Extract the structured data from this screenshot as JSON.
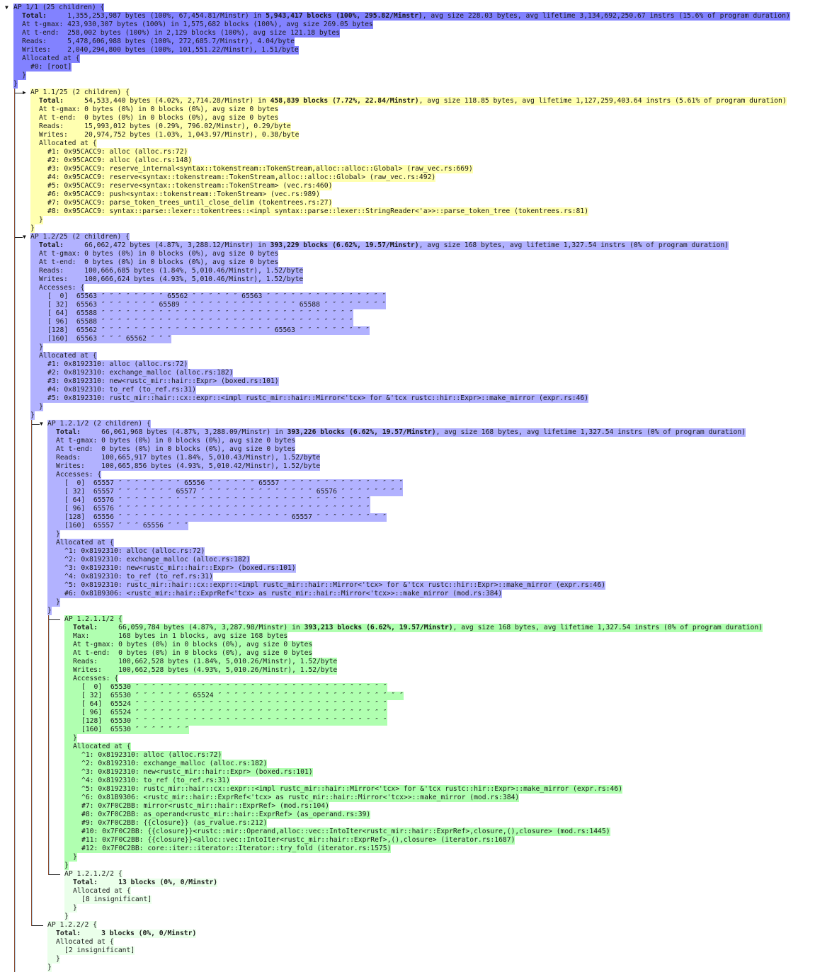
{
  "colors": {
    "root": "#8282ff",
    "ap_1_2": "#b2b2ff",
    "yellow": "#ffffb0",
    "green": "#b0ffb0",
    "light_green": "#eaffea"
  },
  "labels": {
    "total": "Total:",
    "max": "Max:",
    "gmax": "At t-gmax:",
    "tend": "At t-end:",
    "reads": "Reads:",
    "writes": "Writes:",
    "accesses": "Accesses: {",
    "allocated": "Allocated at {",
    "close": "}"
  },
  "nodes": {
    "root": {
      "header": "AP 1/1 (25 children) {",
      "toggle": "expanded",
      "color_key": "root",
      "total_pre": "1,355,253,987 bytes (100%, 67,454.81/Minstr) in ",
      "total_bold": "5,943,417 blocks (100%, 295.82/Minstr)",
      "total_post": ", avg size 228.03 bytes, avg lifetime 3,134,692,250.67 instrs (15.6% of program duration)",
      "gmax": "423,930,307 bytes (100%) in 1,575,682 blocks (100%), avg size 269.05 bytes",
      "tend": "258,002 bytes (100%) in 2,129 blocks (100%), avg size 121.18 bytes",
      "reads": "5,478,606,988 bytes (100%, 272,685.7/Minstr), 4.04/byte",
      "writes": "2,040,294,800 bytes (100%, 101,551.22/Minstr), 1.51/byte",
      "frames": [
        "#0: [root]"
      ]
    },
    "ap_1_1": {
      "header": "AP 1.1/25 (2 children) {",
      "toggle": "collapsed",
      "color_key": "yellow",
      "total_pre": "54,533,440 bytes (4.02%, 2,714.28/Minstr) in ",
      "total_bold": "458,839 blocks (7.72%, 22.84/Minstr)",
      "total_post": ", avg size 118.85 bytes, avg lifetime 1,127,259,403.64 instrs (5.61% of program duration)",
      "gmax": "0 bytes (0%) in 0 blocks (0%), avg size 0 bytes",
      "tend": "0 bytes (0%) in 0 blocks (0%), avg size 0 bytes",
      "reads": "15,993,012 bytes (0.29%, 796.02/Minstr), 0.29/byte",
      "writes": "20,974,752 bytes (1.03%, 1,043.97/Minstr), 0.38/byte",
      "frames": [
        "#1: 0x95CACC9: alloc (alloc.rs:72)",
        "#2: 0x95CACC9: alloc (alloc.rs:148)",
        "#3: 0x95CACC9: reserve_internal<syntax::tokenstream::TokenStream,alloc::alloc::Global> (raw_vec.rs:669)",
        "#4: 0x95CACC9: reserve<syntax::tokenstream::TokenStream,alloc::alloc::Global> (raw_vec.rs:492)",
        "#5: 0x95CACC9: reserve<syntax::tokenstream::TokenStream> (vec.rs:460)",
        "#6: 0x95CACC9: push<syntax::tokenstream::TokenStream> (vec.rs:989)",
        "#7: 0x95CACC9: parse_token_trees_until_close_delim (tokentrees.rs:27)",
        "#8: 0x95CACC9: syntax::parse::lexer::tokentrees::<impl syntax::parse::lexer::StringReader<'a>>::parse_token_tree (tokentrees.rs:81)"
      ]
    },
    "ap_1_2": {
      "header": "AP 1.2/25 (2 children) {",
      "toggle": "expanded",
      "color_key": "ap_1_2",
      "total_pre": "66,062,472 bytes (4.87%, 3,288.12/Minstr) in ",
      "total_bold": "393,229 blocks (6.62%, 19.57/Minstr)",
      "total_post": ", avg size 168 bytes, avg lifetime 1,327.54 instrs (0% of program duration)",
      "gmax": "0 bytes (0%) in 0 blocks (0%), avg size 0 bytes",
      "tend": "0 bytes (0%) in 0 blocks (0%), avg size 0 bytes",
      "reads": "100,666,685 bytes (1.84%, 5,010.46/Minstr), 1.52/byte",
      "writes": "100,666,624 bytes (4.93%, 5,010.46/Minstr), 1.52/byte",
      "accesses": [
        {
          "offset": "[  0]",
          "values": "65563 ″ ″ ″ ″ ″ ″ ″ ″ 65562 ″ ″ ″ ″ ″ ″ 65563 ″ ″ ″ ″ ″ ″ ″ ″ ″ ″ ″ ″ ″ ″ ″"
        },
        {
          "offset": "[ 32]",
          "values": "65563 ″ ″ ″ ″ ″ ″ ″ 65589 ″ ″ ″ ″ ″ ″ ″ ″ ″ ″ ″ ″ ″ ″ 65588 ″ ″ ″ ″ ″ ″ ″ ″"
        },
        {
          "offset": "[ 64]",
          "values": "65588 ″ ″ ″ ″ ″ ″ ″ ″ ″ ″ ″ ″ ″ ″ ″ ″ ″ ″ ″ ″ ″ ″ ″ ″ ″ ″ ″ ″ ″ ″ ″"
        },
        {
          "offset": "[ 96]",
          "values": "65588 ″ ″ ″ ″ ″ ″ ″ ″ ″ ″ ″ ″ ″ ″ ″ ″ ″ ″ ″ ″ ″ ″ ″ ″ ″ ″ ″ ″ ″ ″ ″"
        },
        {
          "offset": "[128]",
          "values": "65562 ″ ″ ″ ″ ″ ″ ″ ″ ″ ″ ″ ″ ″ ″ ″ ″ ″ ″ ″ ″ ″ 65563 ″ ″ ″ ″ ″ ″ ″ ″ ″"
        },
        {
          "offset": "[160]",
          "values": "65563 ″ ″ ″ 65562 ″ ″ ″"
        }
      ],
      "frames": [
        "#1: 0x8192310: alloc (alloc.rs:72)",
        "#2: 0x8192310: exchange_malloc (alloc.rs:182)",
        "#3: 0x8192310: new<rustc_mir::hair::Expr> (boxed.rs:101)",
        "#4: 0x8192310: to_ref (to_ref.rs:31)",
        "#5: 0x8192310: rustc_mir::hair::cx::expr::<impl rustc_mir::hair::Mirror<'tcx> for &'tcx rustc::hir::Expr>::make_mirror (expr.rs:46)"
      ]
    },
    "ap_1_2_1": {
      "header": "AP 1.2.1/2 (2 children) {",
      "toggle": "expanded",
      "color_key": "ap_1_2",
      "total_pre": "66,061,968 bytes (4.87%, 3,288.09/Minstr) in ",
      "total_bold": "393,226 blocks (6.62%, 19.57/Minstr)",
      "total_post": ", avg size 168 bytes, avg lifetime 1,327.54 instrs (0% of program duration)",
      "gmax": "0 bytes (0%) in 0 blocks (0%), avg size 0 bytes",
      "tend": "0 bytes (0%) in 0 blocks (0%), avg size 0 bytes",
      "reads": "100,665,917 bytes (1.84%, 5,010.43/Minstr), 1.52/byte",
      "writes": "100,665,856 bytes (4.93%, 5,010.42/Minstr), 1.52/byte",
      "accesses": [
        {
          "offset": "[  0]",
          "values": "65557 ″ ″ ″ ″ ″ ″ ″ ″ 65556 ″ ″ ″ ″ ″ ″ 65557 ″ ″ ″ ″ ″ ″ ″ ″ ″ ″ ″ ″ ″ ″ ″"
        },
        {
          "offset": "[ 32]",
          "values": "65557 ″ ″ ″ ″ ″ ″ ″ 65577 ″ ″ ″ ″ ″ ″ ″ ″ ″ ″ ″ ″ ″ ″ 65576 ″ ″ ″ ″ ″ ″ ″ ″"
        },
        {
          "offset": "[ 64]",
          "values": "65576 ″ ″ ″ ″ ″ ″ ″ ″ ″ ″ ″ ″ ″ ″ ″ ″ ″ ″ ″ ″ ″ ″ ″ ″ ″ ″ ″ ″ ″ ″ ″"
        },
        {
          "offset": "[ 96]",
          "values": "65576 ″ ″ ″ ″ ″ ″ ″ ″ ″ ″ ″ ″ ″ ″ ″ ″ ″ ″ ″ ″ ″ ″ ″ ″ ″ ″ ″ ″ ″ ″ ″"
        },
        {
          "offset": "[128]",
          "values": "65556 ″ ″ ″ ″ ″ ″ ″ ″ ″ ″ ″ ″ ″ ″ ″ ″ ″ ″ ″ ″ ″ 65557 ″ ″ ″ ″ ″ ″ ″ ″ ″"
        },
        {
          "offset": "[160]",
          "values": "65557 ″ ″ ″ 65556 ″ ″ ″"
        }
      ],
      "frames": [
        "^1: 0x8192310: alloc (alloc.rs:72)",
        "^2: 0x8192310: exchange_malloc (alloc.rs:182)",
        "^3: 0x8192310: new<rustc_mir::hair::Expr> (boxed.rs:101)",
        "^4: 0x8192310: to_ref (to_ref.rs:31)",
        "^5: 0x8192310: rustc_mir::hair::cx::expr::<impl rustc_mir::hair::Mirror<'tcx> for &'tcx rustc::hir::Expr>::make_mirror (expr.rs:46)",
        "#6: 0x81B9306: <rustc_mir::hair::ExprRef<'tcx> as rustc_mir::hair::Mirror<'tcx>>::make_mirror (mod.rs:384)"
      ]
    },
    "ap_1_2_1_1": {
      "header": "AP 1.2.1.1/2 {",
      "toggle": "leaf",
      "color_key": "green",
      "total_pre": "66,059,784 bytes (4.87%, 3,287.98/Minstr) in ",
      "total_bold": "393,213 blocks (6.62%, 19.57/Minstr)",
      "total_post": ", avg size 168 bytes, avg lifetime 1,327.54 instrs (0% of program duration)",
      "max": "168 bytes in 1 blocks, avg size 168 bytes",
      "gmax": "0 bytes (0%) in 0 blocks (0%), avg size 0 bytes",
      "tend": "0 bytes (0%) in 0 blocks (0%), avg size 0 bytes",
      "reads": "100,662,528 bytes (1.84%, 5,010.26/Minstr), 1.52/byte",
      "writes": "100,662,528 bytes (4.93%, 5,010.26/Minstr), 1.52/byte",
      "accesses": [
        {
          "offset": "[  0]",
          "values": "65530 ″ ″ ″ ″ ″ ″ ″ ″ ″ ″ ″ ″ ″ ″ ″ ″ ″ ″ ″ ″ ″ ″ ″ ″ ″ ″ ″ ″ ″ ″ ″"
        },
        {
          "offset": "[ 32]",
          "values": "65530 ″ ″ ″ ″ ″ ″ ″ 65524 ″ ″ ″ ″ ″ ″ ″ ″ ″ ″ ″ ″ ″ ″ ″ ″ ″ ″ ″ ″ ″ ″ ″"
        },
        {
          "offset": "[ 64]",
          "values": "65524 ″ ″ ″ ″ ″ ″ ″ ″ ″ ″ ″ ″ ″ ″ ″ ″ ″ ″ ″ ″ ″ ″ ″ ″ ″ ″ ″ ″ ″ ″ ″"
        },
        {
          "offset": "[ 96]",
          "values": "65524 ″ ″ ″ ″ ″ ″ ″ ″ ″ ″ ″ ″ ″ ″ ″ ″ ″ ″ ″ ″ ″ ″ ″ ″ ″ ″ ″ ″ ″ ″ ″"
        },
        {
          "offset": "[128]",
          "values": "65530 ″ ″ ″ ″ ″ ″ ″ ″ ″ ″ ″ ″ ″ ″ ″ ″ ″ ″ ″ ″ ″ ″ ″ ″ ″ ″ ″ ″ ″ ″ ″"
        },
        {
          "offset": "[160]",
          "values": "65530 ″ ″ ″ ″ ″ ″ ″"
        }
      ],
      "frames": [
        "^1: 0x8192310: alloc (alloc.rs:72)",
        "^2: 0x8192310: exchange_malloc (alloc.rs:182)",
        "^3: 0x8192310: new<rustc_mir::hair::Expr> (boxed.rs:101)",
        "^4: 0x8192310: to_ref (to_ref.rs:31)",
        "^5: 0x8192310: rustc_mir::hair::cx::expr::<impl rustc_mir::hair::Mirror<'tcx> for &'tcx rustc::hir::Expr>::make_mirror (expr.rs:46)",
        "^6: 0x81B9306: <rustc_mir::hair::ExprRef<'tcx> as rustc_mir::hair::Mirror<'tcx>>::make_mirror (mod.rs:384)",
        "#7: 0x7F0C2BB: mirror<rustc_mir::hair::ExprRef> (mod.rs:104)",
        "#8: 0x7F0C2BB: as_operand<rustc_mir::hair::ExprRef> (as_operand.rs:39)",
        "#9: 0x7F0C2BB: {{closure}} (as_rvalue.rs:212)",
        "#10: 0x7F0C2BB: {{closure}}<rustc::mir::Operand,alloc::vec::IntoIter<rustc_mir::hair::ExprRef>,closure,(),closure> (mod.rs:1445)",
        "#11: 0x7F0C2BB: {{closure}}<alloc::vec::IntoIter<rustc_mir::hair::ExprRef>,(),closure> (iterator.rs:1687)",
        "#12: 0x7F0C2BB: core::iter::iterator::Iterator::try_fold (iterator.rs:1575)"
      ]
    },
    "ap_1_2_1_2": {
      "header": "AP 1.2.1.2/2 {",
      "toggle": "leaf",
      "color_key": "light_green",
      "total_pre": "",
      "total_bold": "13 blocks (0%, 0/Minstr)",
      "total_post": "",
      "frames": [
        "[8 insignificant]"
      ]
    },
    "ap_1_2_2": {
      "header": "AP 1.2.2/2 {",
      "toggle": "leaf",
      "color_key": "light_green",
      "total_pre": "",
      "total_bold": "3 blocks (0%, 0/Minstr)",
      "total_post": "",
      "frames": [
        "[2 insignificant]"
      ]
    }
  }
}
